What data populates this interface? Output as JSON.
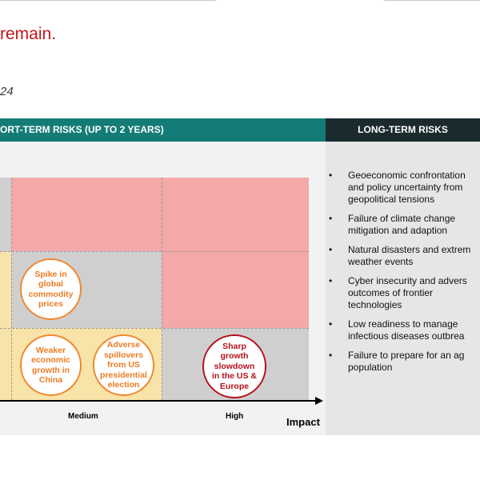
{
  "page": {
    "title": "remain.",
    "subtitle": "24"
  },
  "short_term": {
    "header": "ORT-TERM RISKS (UP TO 2 YEARS)",
    "x_axis": {
      "label": "Impact",
      "ticks": [
        "Medium",
        "High"
      ]
    },
    "colors": {
      "red_zone": "#f4a8a8",
      "grey_zone": "#cfcfcf",
      "yellow_zone": "#f8e3a9",
      "orange": "#ee7b22",
      "dark_red": "#b5121b"
    },
    "bubbles": [
      {
        "id": "commodity",
        "text": "Spike in\nglobal\ncommodity\nprices",
        "color": "orange"
      },
      {
        "id": "china",
        "text": "Weaker\neconomic\ngrowth in\nChina",
        "color": "orange"
      },
      {
        "id": "election",
        "text": "Adverse\nspillovers\nfrom US\npresidential\nelection",
        "color": "orange"
      },
      {
        "id": "slowdown",
        "text": "Sharp\ngrowth\nslowdown\nin the US &\nEurope",
        "color": "red"
      }
    ]
  },
  "long_term": {
    "header": "LONG-TERM RISKS",
    "bullet": "•",
    "items": [
      "Geoeconomic confrontation\nand policy uncertainty from\ngeopolitical tensions",
      "Failure of climate change\nmitigation and adaption",
      "Natural disasters and extrem\nweather events",
      "Cyber insecurity and advers\noutcomes of frontier\ntechnologies",
      "Low readiness to manage\ninfectious diseases outbrea",
      "Failure to prepare for an ag\npopulation"
    ]
  }
}
